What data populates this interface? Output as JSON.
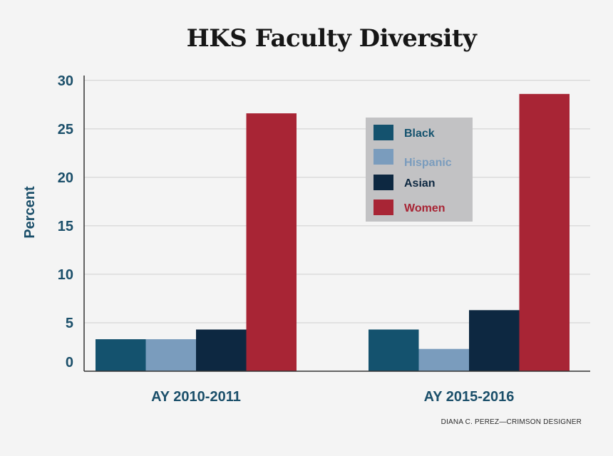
{
  "chart_data": {
    "type": "bar",
    "title": "HKS Faculty Diversity",
    "ylabel": "Percent",
    "xlabel": "",
    "categories": [
      "AY 2010-2011",
      "AY 2015-2016"
    ],
    "yticks": [
      0,
      5,
      10,
      15,
      20,
      25,
      30
    ],
    "ylim": [
      0,
      30.5
    ],
    "grid": true,
    "legend_position": "top-right",
    "series": [
      {
        "name": "Black",
        "color": "#14526e",
        "values": [
          3.3,
          4.3
        ]
      },
      {
        "name": "Hispanic",
        "color": "#7a9cbd",
        "values": [
          3.3,
          2.3
        ]
      },
      {
        "name": "Asian",
        "color": "#0d2841",
        "values": [
          4.3,
          6.3
        ]
      },
      {
        "name": "Women",
        "color": "#a82535",
        "values": [
          26.6,
          28.6
        ]
      }
    ]
  },
  "credit": "DIANA C. PEREZ—CRIMSON DESIGNER"
}
